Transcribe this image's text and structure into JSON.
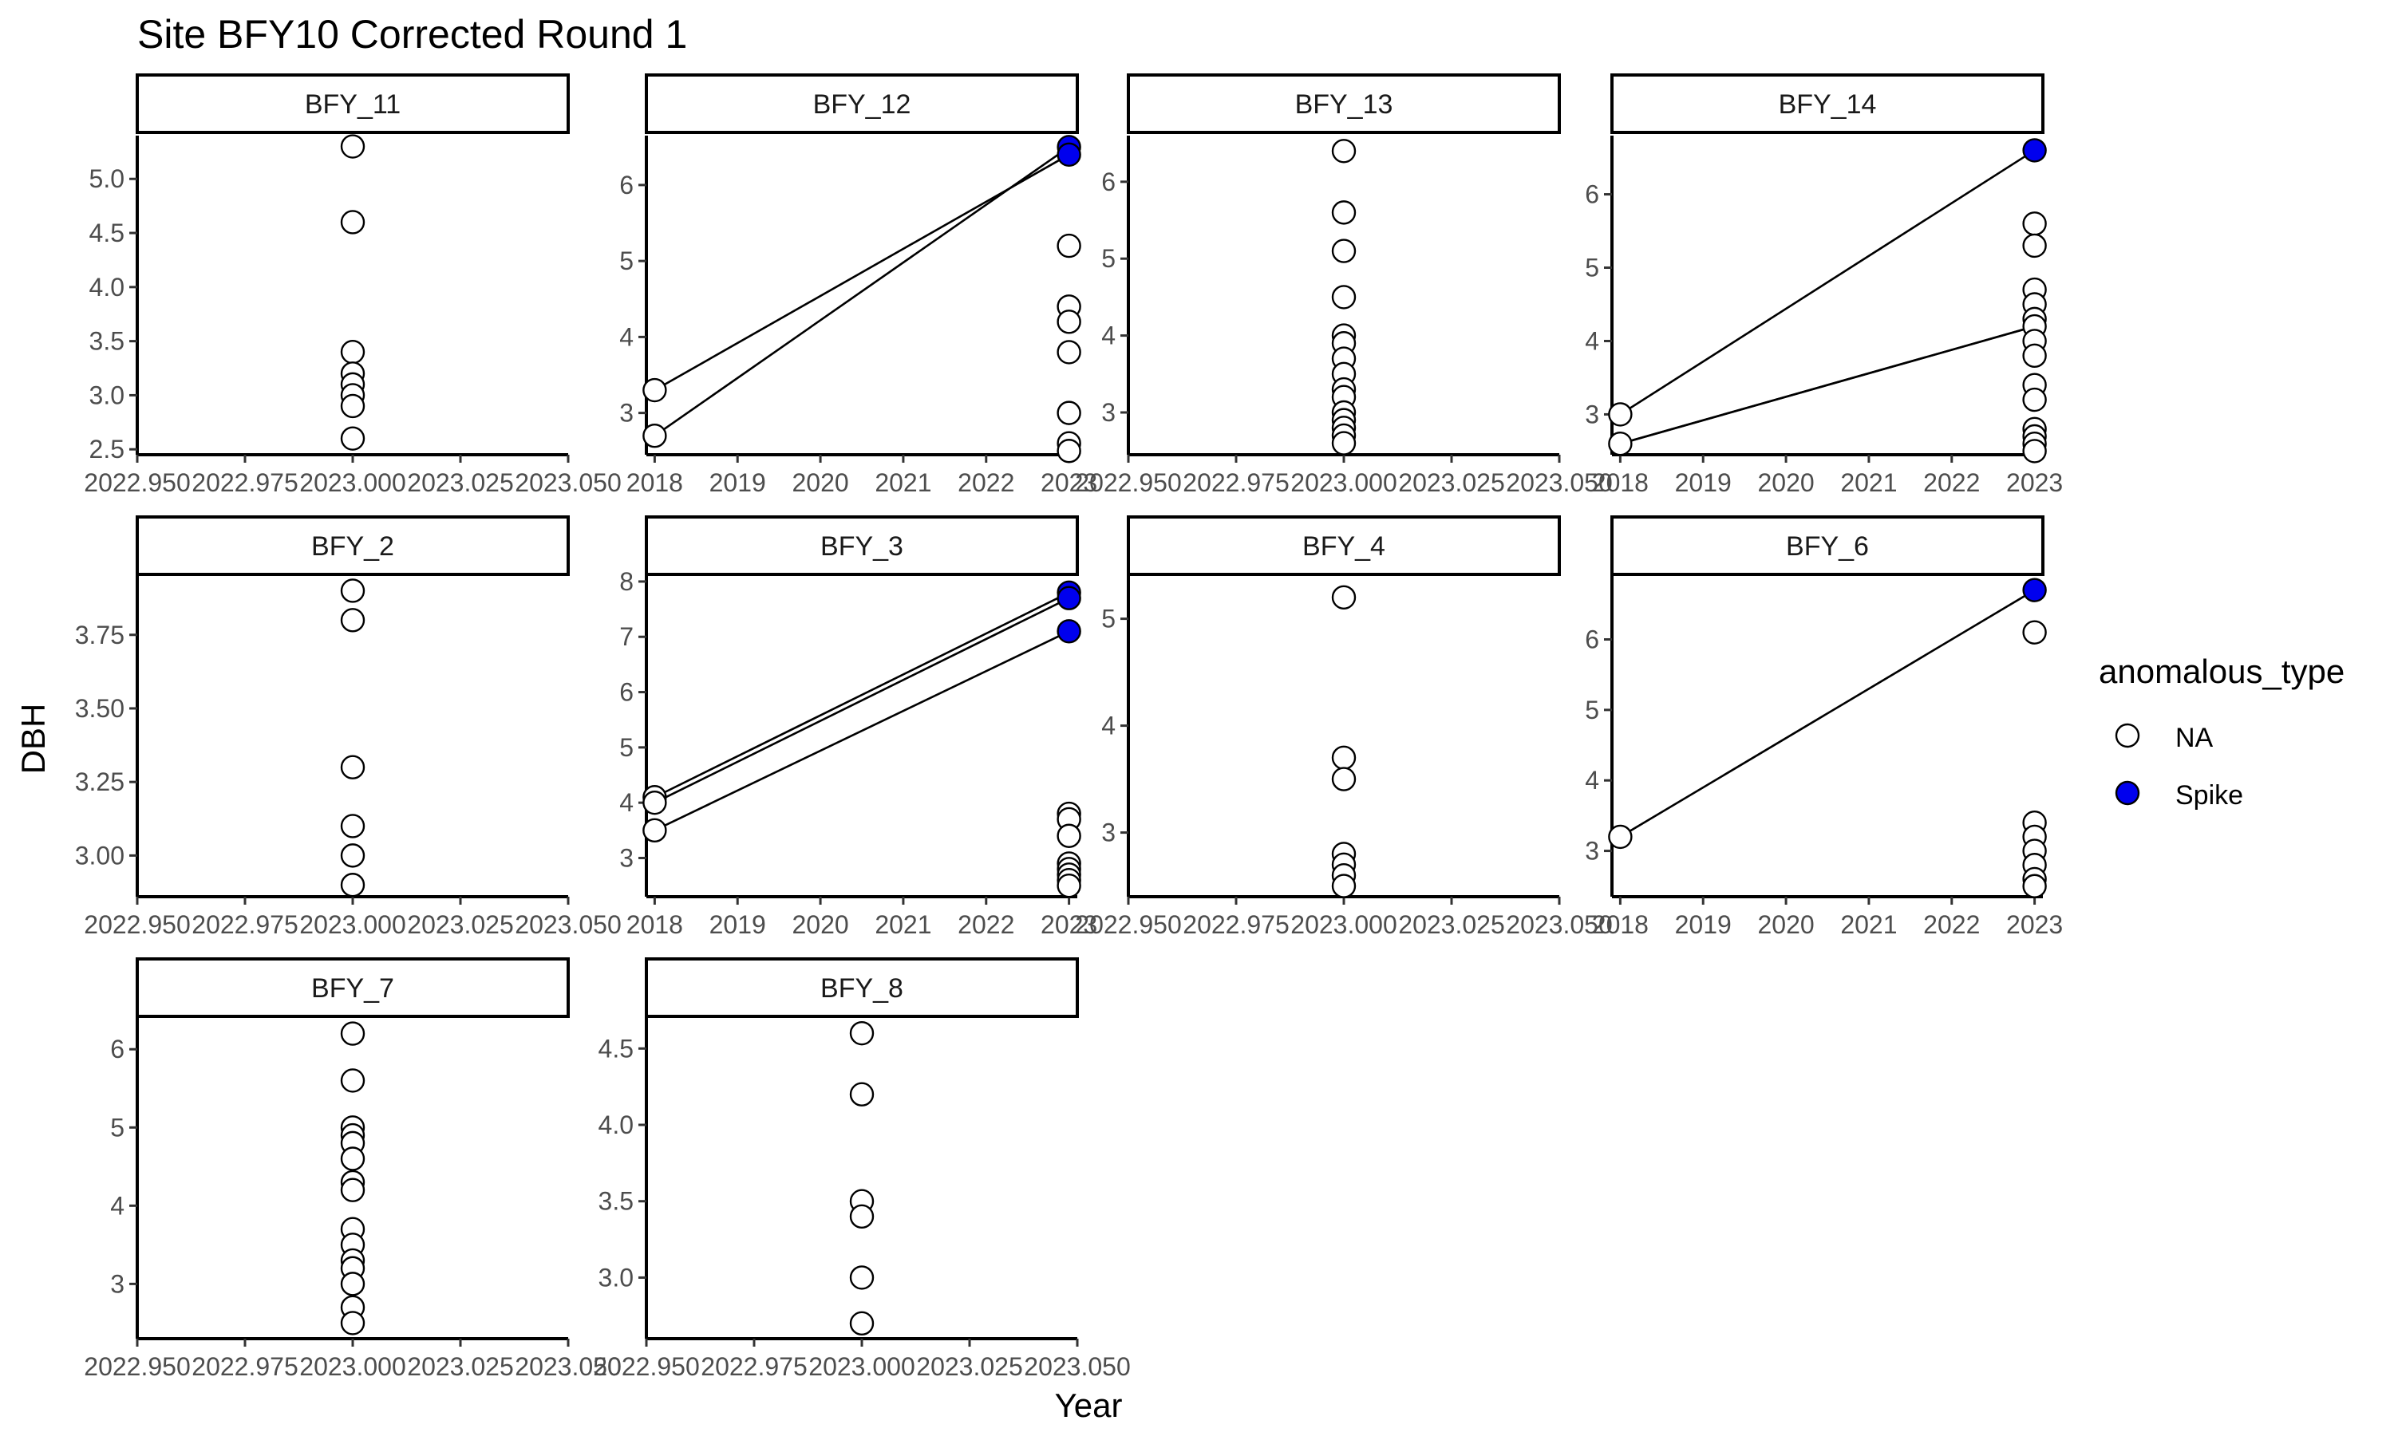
{
  "title": "Site BFY10 Corrected Round 1",
  "xlabel": "Year",
  "ylabel": "DBH",
  "legend": {
    "title": "anomalous_type",
    "entries": [
      {
        "label": "NA",
        "fill": "#ffffff"
      },
      {
        "label": "Spike",
        "fill": "#0000ee"
      }
    ]
  },
  "colors": {
    "na": "#ffffff",
    "spike": "#0000ee",
    "stroke": "#000000",
    "axis_text": "#4d4d4d"
  },
  "chart_data": {
    "type": "scatter",
    "facets": [
      {
        "name": "BFY_11",
        "xlim": [
          2022.95,
          2023.05
        ],
        "xticks": [
          2022.95,
          2022.975,
          2023.0,
          2023.025,
          2023.05
        ],
        "xtick_labels": [
          "2022.950",
          "2022.975",
          "2023.000",
          "2023.025",
          "2023.050"
        ],
        "ylim": [
          2.45,
          5.4
        ],
        "yticks": [
          2.5,
          3.0,
          3.5,
          4.0,
          4.5,
          5.0
        ],
        "ytick_labels": [
          "2.5",
          "3.0",
          "3.5",
          "4.0",
          "4.5",
          "5.0"
        ],
        "points": [
          [
            2023,
            5.3,
            "NA"
          ],
          [
            2023,
            4.6,
            "NA"
          ],
          [
            2023,
            3.4,
            "NA"
          ],
          [
            2023,
            3.2,
            "NA"
          ],
          [
            2023,
            3.1,
            "NA"
          ],
          [
            2023,
            3.0,
            "NA"
          ],
          [
            2023,
            2.9,
            "NA"
          ],
          [
            2023,
            2.6,
            "NA"
          ]
        ],
        "segments": []
      },
      {
        "name": "BFY_12",
        "xlim": [
          2017.9,
          2023.1
        ],
        "xticks": [
          2018,
          2019,
          2020,
          2021,
          2022,
          2023
        ],
        "xtick_labels": [
          "2018",
          "2019",
          "2020",
          "2021",
          "2022",
          "2023"
        ],
        "ylim": [
          2.45,
          6.65
        ],
        "yticks": [
          3,
          4,
          5,
          6
        ],
        "ytick_labels": [
          "3",
          "4",
          "5",
          "6"
        ],
        "points": [
          [
            2018,
            3.3,
            "NA"
          ],
          [
            2018,
            2.7,
            "NA"
          ],
          [
            2023,
            6.5,
            "Spike"
          ],
          [
            2023,
            6.4,
            "Spike"
          ],
          [
            2023,
            5.2,
            "NA"
          ],
          [
            2023,
            4.4,
            "NA"
          ],
          [
            2023,
            4.2,
            "NA"
          ],
          [
            2023,
            3.8,
            "NA"
          ],
          [
            2023,
            3.0,
            "NA"
          ],
          [
            2023,
            2.6,
            "NA"
          ],
          [
            2023,
            2.5,
            "NA"
          ]
        ],
        "segments": [
          [
            2018,
            3.3,
            2023,
            6.4
          ],
          [
            2018,
            2.7,
            2023,
            6.5
          ]
        ]
      },
      {
        "name": "BFY_13",
        "xlim": [
          2022.95,
          2023.05
        ],
        "xticks": [
          2022.95,
          2022.975,
          2023.0,
          2023.025,
          2023.05
        ],
        "xtick_labels": [
          "2022.950",
          "2022.975",
          "2023.000",
          "2023.025",
          "2023.050"
        ],
        "ylim": [
          2.45,
          6.6
        ],
        "yticks": [
          3,
          4,
          5,
          6
        ],
        "ytick_labels": [
          "3",
          "4",
          "5",
          "6"
        ],
        "points": [
          [
            2023,
            6.4,
            "NA"
          ],
          [
            2023,
            5.6,
            "NA"
          ],
          [
            2023,
            5.1,
            "NA"
          ],
          [
            2023,
            4.5,
            "NA"
          ],
          [
            2023,
            4.0,
            "NA"
          ],
          [
            2023,
            3.9,
            "NA"
          ],
          [
            2023,
            3.7,
            "NA"
          ],
          [
            2023,
            3.5,
            "NA"
          ],
          [
            2023,
            3.3,
            "NA"
          ],
          [
            2023,
            3.2,
            "NA"
          ],
          [
            2023,
            3.0,
            "NA"
          ],
          [
            2023,
            2.9,
            "NA"
          ],
          [
            2023,
            2.8,
            "NA"
          ],
          [
            2023,
            2.7,
            "NA"
          ],
          [
            2023,
            2.6,
            "NA"
          ]
        ],
        "segments": []
      },
      {
        "name": "BFY_14",
        "xlim": [
          2017.9,
          2023.1
        ],
        "xticks": [
          2018,
          2019,
          2020,
          2021,
          2022,
          2023
        ],
        "xtick_labels": [
          "2018",
          "2019",
          "2020",
          "2021",
          "2022",
          "2023"
        ],
        "ylim": [
          2.45,
          6.8
        ],
        "yticks": [
          3,
          4,
          5,
          6
        ],
        "ytick_labels": [
          "3",
          "4",
          "5",
          "6"
        ],
        "points": [
          [
            2018,
            3.0,
            "NA"
          ],
          [
            2018,
            2.6,
            "NA"
          ],
          [
            2023,
            6.6,
            "Spike"
          ],
          [
            2023,
            5.6,
            "NA"
          ],
          [
            2023,
            5.3,
            "NA"
          ],
          [
            2023,
            4.7,
            "NA"
          ],
          [
            2023,
            4.5,
            "NA"
          ],
          [
            2023,
            4.3,
            "NA"
          ],
          [
            2023,
            4.2,
            "NA"
          ],
          [
            2023,
            4.0,
            "NA"
          ],
          [
            2023,
            3.8,
            "NA"
          ],
          [
            2023,
            3.4,
            "NA"
          ],
          [
            2023,
            3.2,
            "NA"
          ],
          [
            2023,
            2.8,
            "NA"
          ],
          [
            2023,
            2.7,
            "NA"
          ],
          [
            2023,
            2.6,
            "NA"
          ],
          [
            2023,
            2.5,
            "NA"
          ]
        ],
        "segments": [
          [
            2018,
            3.0,
            2023,
            6.6
          ],
          [
            2018,
            2.6,
            2023,
            4.2
          ],
          [
            2018,
            2.6,
            2023,
            4.2
          ]
        ]
      },
      {
        "name": "BFY_2",
        "xlim": [
          2022.95,
          2023.05
        ],
        "xticks": [
          2022.95,
          2022.975,
          2023.0,
          2023.025,
          2023.05
        ],
        "xtick_labels": [
          "2022.950",
          "2022.975",
          "2023.000",
          "2023.025",
          "2023.050"
        ],
        "ylim": [
          2.86,
          3.95
        ],
        "yticks": [
          3.0,
          3.25,
          3.5,
          3.75
        ],
        "ytick_labels": [
          "3.00",
          "3.25",
          "3.50",
          "3.75"
        ],
        "points": [
          [
            2023,
            3.9,
            "NA"
          ],
          [
            2023,
            3.8,
            "NA"
          ],
          [
            2023,
            3.3,
            "NA"
          ],
          [
            2023,
            3.1,
            "NA"
          ],
          [
            2023,
            3.0,
            "NA"
          ],
          [
            2023,
            2.9,
            "NA"
          ]
        ],
        "segments": []
      },
      {
        "name": "BFY_3",
        "xlim": [
          2017.9,
          2023.1
        ],
        "xticks": [
          2018,
          2019,
          2020,
          2021,
          2022,
          2023
        ],
        "xtick_labels": [
          "2018",
          "2019",
          "2020",
          "2021",
          "2022",
          "2023"
        ],
        "ylim": [
          2.3,
          8.1
        ],
        "yticks": [
          3,
          4,
          5,
          6,
          7,
          8
        ],
        "ytick_labels": [
          "3",
          "4",
          "5",
          "6",
          "7",
          "8"
        ],
        "points": [
          [
            2018,
            4.1,
            "NA"
          ],
          [
            2018,
            4.0,
            "NA"
          ],
          [
            2018,
            3.5,
            "NA"
          ],
          [
            2023,
            7.8,
            "Spike"
          ],
          [
            2023,
            7.7,
            "Spike"
          ],
          [
            2023,
            7.1,
            "Spike"
          ],
          [
            2023,
            3.8,
            "NA"
          ],
          [
            2023,
            3.7,
            "NA"
          ],
          [
            2023,
            3.4,
            "NA"
          ],
          [
            2023,
            2.9,
            "NA"
          ],
          [
            2023,
            2.8,
            "NA"
          ],
          [
            2023,
            2.7,
            "NA"
          ],
          [
            2023,
            2.6,
            "NA"
          ],
          [
            2023,
            2.5,
            "NA"
          ]
        ],
        "segments": [
          [
            2018,
            4.1,
            2023,
            7.8
          ],
          [
            2018,
            4.0,
            2023,
            7.7
          ],
          [
            2018,
            3.5,
            2023,
            7.1
          ]
        ]
      },
      {
        "name": "BFY_4",
        "xlim": [
          2022.95,
          2023.05
        ],
        "xticks": [
          2022.95,
          2022.975,
          2023.0,
          2023.025,
          2023.05
        ],
        "xtick_labels": [
          "2022.950",
          "2022.975",
          "2023.000",
          "2023.025",
          "2023.050"
        ],
        "ylim": [
          2.4,
          5.4
        ],
        "yticks": [
          3,
          4,
          5
        ],
        "ytick_labels": [
          "3",
          "4",
          "5"
        ],
        "points": [
          [
            2023,
            5.2,
            "NA"
          ],
          [
            2023,
            3.7,
            "NA"
          ],
          [
            2023,
            3.5,
            "NA"
          ],
          [
            2023,
            2.8,
            "NA"
          ],
          [
            2023,
            2.7,
            "NA"
          ],
          [
            2023,
            2.6,
            "NA"
          ],
          [
            2023,
            2.5,
            "NA"
          ]
        ],
        "segments": []
      },
      {
        "name": "BFY_6",
        "xlim": [
          2017.9,
          2023.1
        ],
        "xticks": [
          2018,
          2019,
          2020,
          2021,
          2022,
          2023
        ],
        "xtick_labels": [
          "2018",
          "2019",
          "2020",
          "2021",
          "2022",
          "2023"
        ],
        "ylim": [
          2.35,
          6.9
        ],
        "yticks": [
          3,
          4,
          5,
          6
        ],
        "ytick_labels": [
          "3",
          "4",
          "5",
          "6"
        ],
        "points": [
          [
            2018,
            3.2,
            "NA"
          ],
          [
            2023,
            6.7,
            "Spike"
          ],
          [
            2023,
            6.1,
            "NA"
          ],
          [
            2023,
            3.4,
            "NA"
          ],
          [
            2023,
            3.2,
            "NA"
          ],
          [
            2023,
            3.0,
            "NA"
          ],
          [
            2023,
            2.8,
            "NA"
          ],
          [
            2023,
            2.6,
            "NA"
          ],
          [
            2023,
            2.5,
            "NA"
          ]
        ],
        "segments": [
          [
            2018,
            3.2,
            2023,
            6.7
          ]
        ]
      },
      {
        "name": "BFY_7",
        "xlim": [
          2022.95,
          2023.05
        ],
        "xticks": [
          2022.95,
          2022.975,
          2023.0,
          2023.025,
          2023.05
        ],
        "xtick_labels": [
          "2022.950",
          "2022.975",
          "2023.000",
          "2023.025",
          "2023.050"
        ],
        "ylim": [
          2.3,
          6.4
        ],
        "yticks": [
          3,
          4,
          5,
          6
        ],
        "ytick_labels": [
          "3",
          "4",
          "5",
          "6"
        ],
        "points": [
          [
            2023,
            6.2,
            "NA"
          ],
          [
            2023,
            5.6,
            "NA"
          ],
          [
            2023,
            5.0,
            "NA"
          ],
          [
            2023,
            4.9,
            "NA"
          ],
          [
            2023,
            4.8,
            "NA"
          ],
          [
            2023,
            4.6,
            "NA"
          ],
          [
            2023,
            4.3,
            "NA"
          ],
          [
            2023,
            4.2,
            "NA"
          ],
          [
            2023,
            3.7,
            "NA"
          ],
          [
            2023,
            3.5,
            "NA"
          ],
          [
            2023,
            3.3,
            "NA"
          ],
          [
            2023,
            3.2,
            "NA"
          ],
          [
            2023,
            3.0,
            "NA"
          ],
          [
            2023,
            2.7,
            "NA"
          ],
          [
            2023,
            2.5,
            "NA"
          ]
        ],
        "segments": []
      },
      {
        "name": "BFY_8",
        "xlim": [
          2022.95,
          2023.05
        ],
        "xticks": [
          2022.95,
          2022.975,
          2023.0,
          2023.025,
          2023.05
        ],
        "xtick_labels": [
          "2022.950",
          "2022.975",
          "2023.000",
          "2023.025",
          "2023.050"
        ],
        "ylim": [
          2.6,
          4.7
        ],
        "yticks": [
          3.0,
          3.5,
          4.0,
          4.5
        ],
        "ytick_labels": [
          "3.0",
          "3.5",
          "4.0",
          "4.5"
        ],
        "points": [
          [
            2023,
            4.6,
            "NA"
          ],
          [
            2023,
            4.2,
            "NA"
          ],
          [
            2023,
            3.5,
            "NA"
          ],
          [
            2023,
            3.4,
            "NA"
          ],
          [
            2023,
            3.0,
            "NA"
          ],
          [
            2023,
            2.7,
            "NA"
          ]
        ],
        "segments": []
      }
    ]
  }
}
